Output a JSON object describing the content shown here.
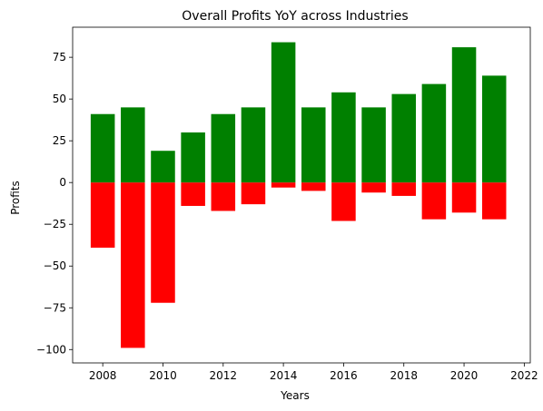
{
  "chart_data": {
    "type": "bar",
    "title": "Overall Profits YoY across Industries",
    "xlabel": "Years",
    "ylabel": "Profits",
    "xlim": [
      2007,
      2022.2
    ],
    "ylim": [
      -108,
      93
    ],
    "x_ticks": [
      "2008",
      "2010",
      "2012",
      "2014",
      "2016",
      "2018",
      "2020",
      "2022"
    ],
    "y_ticks": [
      "75",
      "50",
      "25",
      "0",
      "−25",
      "−50",
      "−75",
      "−100"
    ],
    "categories": [
      2008,
      2009,
      2010,
      2011,
      2012,
      2013,
      2014,
      2015,
      2016,
      2017,
      2018,
      2019,
      2020,
      2021
    ],
    "series": [
      {
        "color": "#008000",
        "values": [
          41,
          45,
          19,
          30,
          41,
          45,
          84,
          45,
          54,
          45,
          53,
          59,
          81,
          64
        ]
      },
      {
        "color": "#ff0000",
        "values": [
          -39,
          -99,
          -72,
          -14,
          -17,
          -13,
          -3,
          -5,
          -23,
          -6,
          -8,
          -22,
          -18,
          -22
        ]
      }
    ],
    "grid": false,
    "legend": "none"
  }
}
